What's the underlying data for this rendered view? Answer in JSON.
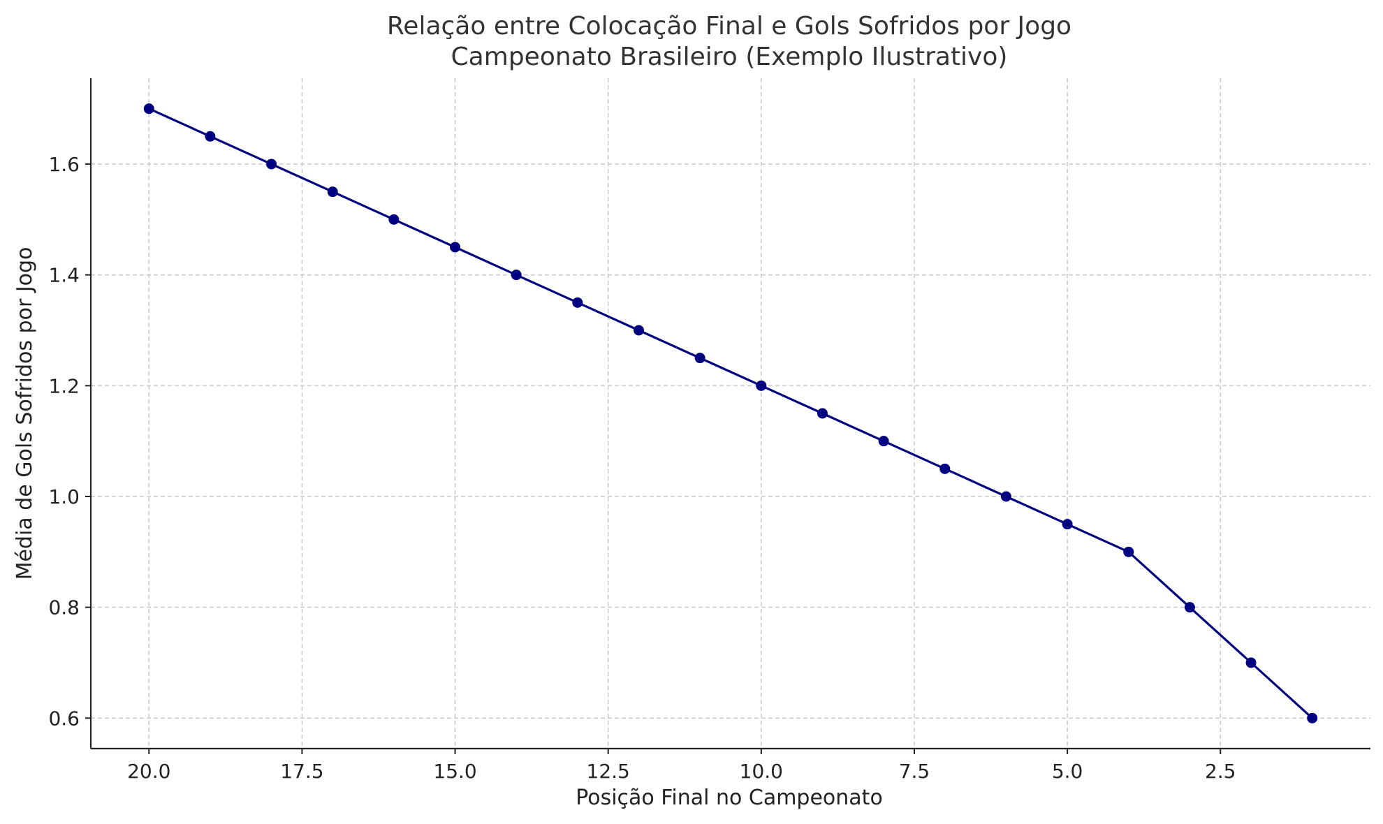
{
  "chart_data": {
    "type": "line",
    "title": "Relação entre Colocação Final e Gols Sofridos por Jogo",
    "subtitle": "Campeonato Brasileiro (Exemplo Ilustrativo)",
    "xlabel": "Posição Final no Campeonato",
    "ylabel": "Média de Gols Sofridos por Jogo",
    "x_inverted": true,
    "xlim": [
      20.95,
      0.05
    ],
    "ylim": [
      0.545,
      1.755
    ],
    "x_ticks": [
      20.0,
      17.5,
      15.0,
      12.5,
      10.0,
      7.5,
      5.0,
      2.5
    ],
    "x_tick_labels": [
      "20.0",
      "17.5",
      "15.0",
      "12.5",
      "10.0",
      "7.5",
      "5.0",
      "2.5"
    ],
    "y_ticks": [
      0.6,
      0.8,
      1.0,
      1.2,
      1.4,
      1.6
    ],
    "y_tick_labels": [
      "0.6",
      "0.8",
      "1.0",
      "1.2",
      "1.4",
      "1.6"
    ],
    "grid": true,
    "series": [
      {
        "color": "#000080",
        "marker": "circle",
        "x": [
          20,
          19,
          18,
          17,
          16,
          15,
          14,
          13,
          12,
          11,
          10,
          9,
          8,
          7,
          6,
          5,
          4,
          3,
          2,
          1
        ],
        "y": [
          1.7,
          1.65,
          1.6,
          1.55,
          1.5,
          1.45,
          1.4,
          1.35,
          1.3,
          1.25,
          1.2,
          1.15,
          1.1,
          1.05,
          1.0,
          0.95,
          0.9,
          0.8,
          0.7,
          0.6
        ]
      }
    ]
  }
}
